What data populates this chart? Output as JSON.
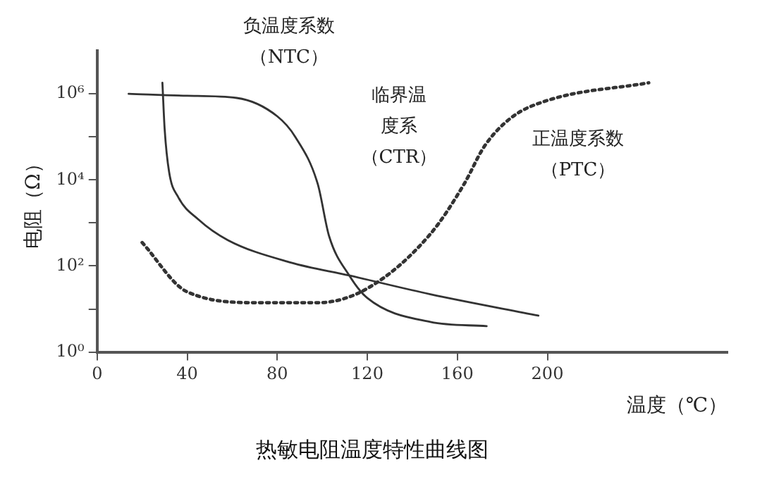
{
  "chart_data": {
    "type": "line",
    "title": "热敏电阻温度特性曲线图",
    "xlabel": "温度（℃）",
    "ylabel": "电阻（Ω）",
    "xlim": [
      0,
      280
    ],
    "xticks": [
      0,
      40,
      80,
      120,
      160,
      200
    ],
    "ylim": [
      1,
      10000000
    ],
    "yticks": [
      {
        "value": 1,
        "label": "10⁰"
      },
      {
        "value": 10,
        "label": null
      },
      {
        "value": 100,
        "label": "10²"
      },
      {
        "value": 1000,
        "label": null
      },
      {
        "value": 10000,
        "label": "10⁴"
      },
      {
        "value": 100000,
        "label": null
      },
      {
        "value": 1000000,
        "label": "10⁶"
      }
    ],
    "log": "y",
    "grid": false,
    "legend": false,
    "marker": "none",
    "series": [
      {
        "color": "#333333",
        "line_style": "solid",
        "x": [
          14,
          40,
          62,
          80,
          88,
          98,
          103,
          112,
          120,
          148,
          173
        ],
        "values": [
          1000000,
          900000,
          800000,
          300000,
          100000,
          8000,
          500,
          60,
          18,
          5,
          4
        ]
      },
      {
        "color": "#333333",
        "line_style": "solid",
        "x": [
          29,
          30,
          32,
          36,
          45,
          58,
          86,
          112,
          148,
          196
        ],
        "values": [
          1800000,
          150000,
          15000,
          4000,
          1200,
          400,
          120,
          60,
          22,
          7
        ]
      },
      {
        "color": "#333333",
        "line_style": "dotted",
        "x": [
          20,
          40,
          72,
          98,
          120,
          148,
          163,
          172,
          184,
          200,
          245
        ],
        "values": [
          350,
          25,
          14,
          14,
          30,
          550,
          8000,
          60000,
          280000,
          700000,
          1800000
        ]
      }
    ],
    "annotations": [
      "负温度系数（NTC）",
      "临界温度系（CTR）",
      "正温度系数（PTC）"
    ]
  }
}
